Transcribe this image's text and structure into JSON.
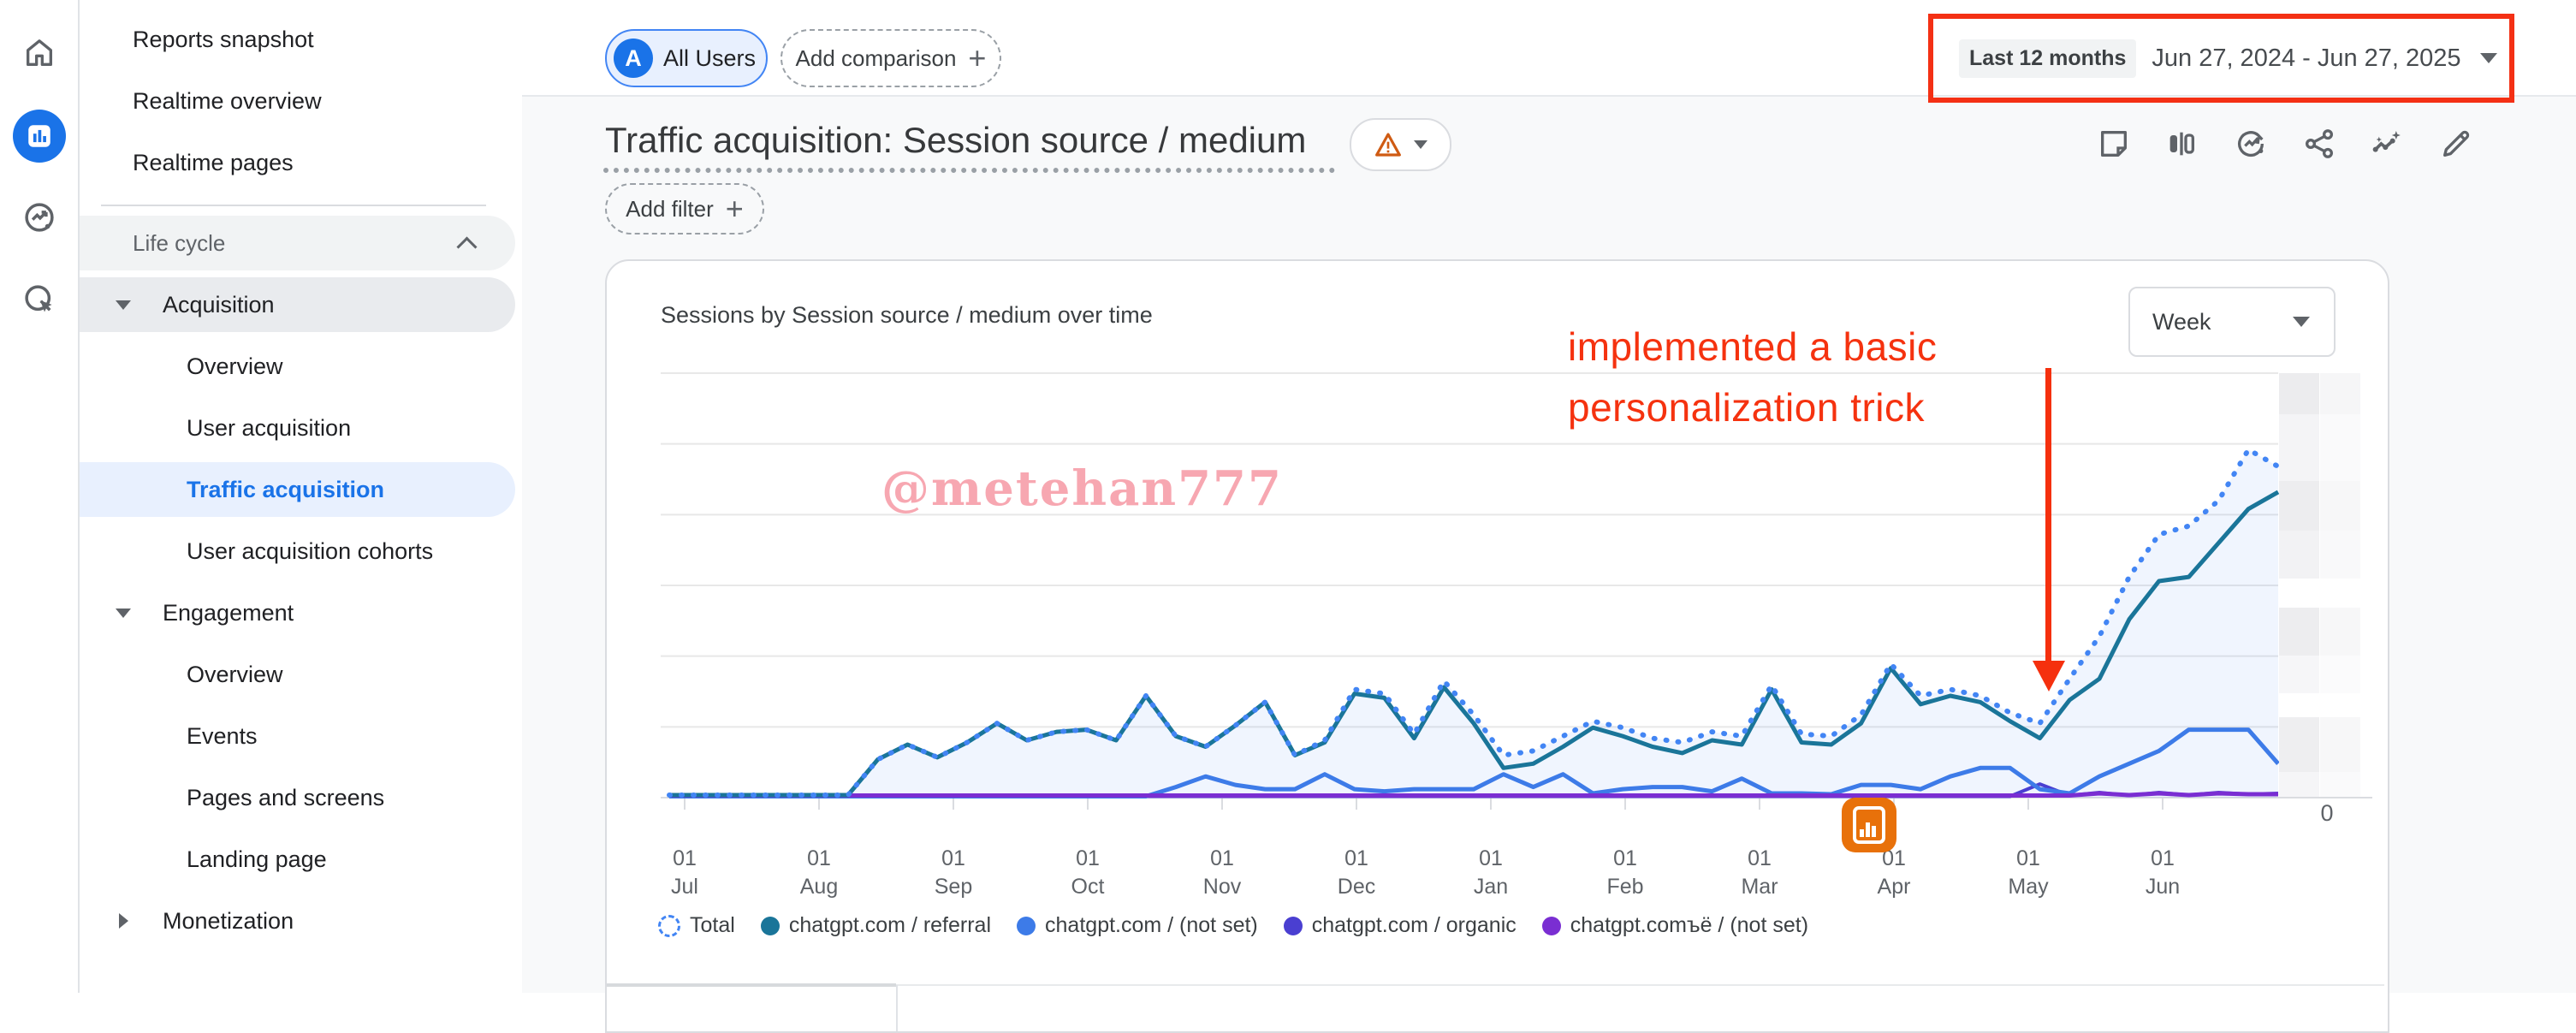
{
  "sidebar": {
    "rail_icons": [
      "home-icon",
      "reports-icon",
      "advertising-icon",
      "explore-icon"
    ],
    "items": [
      {
        "label": "Reports snapshot",
        "kind": "top"
      },
      {
        "label": "Realtime overview",
        "kind": "top"
      },
      {
        "label": "Realtime pages",
        "kind": "top"
      },
      {
        "label": "Life cycle",
        "kind": "section",
        "caret": "up"
      },
      {
        "label": "Acquisition",
        "kind": "category",
        "caret": "down",
        "expanded": true
      },
      {
        "label": "Overview",
        "kind": "leaf"
      },
      {
        "label": "User acquisition",
        "kind": "leaf"
      },
      {
        "label": "Traffic acquisition",
        "kind": "leaf",
        "selected": true
      },
      {
        "label": "User acquisition cohorts",
        "kind": "leaf"
      },
      {
        "label": "Engagement",
        "kind": "category",
        "caret": "down",
        "expanded": true
      },
      {
        "label": "Overview",
        "kind": "leaf"
      },
      {
        "label": "Events",
        "kind": "leaf"
      },
      {
        "label": "Pages and screens",
        "kind": "leaf"
      },
      {
        "label": "Landing page",
        "kind": "leaf"
      },
      {
        "label": "Monetization",
        "kind": "category",
        "caret": "right",
        "expanded": false
      }
    ]
  },
  "topbar": {
    "avatar_letter": "A",
    "all_users_label": "All Users",
    "add_comparison_label": "Add comparison",
    "date_preset": "Last 12 months",
    "date_range": "Jun 27, 2024 - Jun 27, 2025"
  },
  "report_header": {
    "title": "Traffic acquisition: Session source / medium",
    "add_filter_label": "Add filter",
    "toolbar_icons": [
      "note-icon",
      "compare-icon",
      "trends-icon",
      "share-icon",
      "insights-icon",
      "edit-icon"
    ]
  },
  "card": {
    "chart_title": "Sessions by Session source / medium over time",
    "granularity_selected": "Week",
    "right_axis_zero": "0",
    "mini_chart_segments": [
      {
        "y": 131,
        "h": 48,
        "shade": "#ececee"
      },
      {
        "y": 179,
        "h": 78,
        "shade": "#f4f4f6"
      },
      {
        "y": 257,
        "h": 58,
        "shade": "#ededef"
      },
      {
        "y": 315,
        "h": 56,
        "shade": "#f2f2f4"
      },
      {
        "y": 405,
        "h": 56,
        "shade": "#ededef"
      },
      {
        "y": 461,
        "h": 44,
        "shade": "#f6f6f8"
      },
      {
        "y": 533,
        "h": 64,
        "shade": "#eeeef0"
      },
      {
        "y": 597,
        "h": 30,
        "shade": "#f5f5f7"
      }
    ]
  },
  "annotations": {
    "red_line1": "implemented a basic",
    "red_line2": "personalization trick",
    "red_color": "#f5320f",
    "watermark": "@metehan777",
    "marker_icon": "analytics-badge-icon"
  },
  "legend": {
    "items": [
      {
        "label": "Total",
        "style": "dashed",
        "color": "#4285f4"
      },
      {
        "label": "chatgpt.com / referral",
        "style": "solid",
        "color": "#1a7599"
      },
      {
        "label": "chatgpt.com / (not set)",
        "style": "solid",
        "color": "#3d7be8"
      },
      {
        "label": "chatgpt.com / organic",
        "style": "solid",
        "color": "#4a3fd1"
      },
      {
        "label": "chatgpt.comъё / (not set)",
        "style": "solid",
        "color": "#7a2ed2"
      }
    ]
  },
  "chart_data": {
    "type": "line",
    "title": "Sessions by Session source / medium over time",
    "xlabel": "",
    "ylabel": "",
    "y_axis": "unlabeled (only 0 shown at right of companion bar panel)",
    "ylim": [
      0,
      100
    ],
    "note": "values are relative estimates (0-100 of plot height); weekly points Jun 27 2024 - Jun 27 2025",
    "x_tick_day": "01",
    "x_tick_months": [
      "Jul",
      "Aug",
      "Sep",
      "Oct",
      "Nov",
      "Dec",
      "Jan",
      "Feb",
      "Mar",
      "Apr",
      "May",
      "Jun"
    ],
    "grid": true,
    "legend_position": "bottom",
    "series": [
      {
        "name": "Total",
        "color": "#4285f4",
        "dash": true,
        "width": 6,
        "area": true,
        "values": [
          0.6,
          0.6,
          0.6,
          0.6,
          0.6,
          0.6,
          0.6,
          9,
          12.5,
          9.5,
          13,
          17.5,
          13.5,
          15.5,
          16,
          13.5,
          24,
          14.5,
          12,
          17,
          22.5,
          10,
          13.5,
          25.5,
          24.5,
          15,
          27.5,
          19.5,
          10,
          11,
          14.5,
          18,
          16.5,
          14,
          13,
          15.5,
          14.5,
          26.5,
          15,
          14.5,
          19.5,
          31.5,
          24,
          25.5,
          24,
          20,
          17.5,
          28,
          38,
          52,
          62,
          64,
          70,
          82,
          78
        ]
      },
      {
        "name": "chatgpt.com / referral",
        "color": "#1a7599",
        "dash": false,
        "width": 5,
        "values": [
          0.6,
          0.6,
          0.6,
          0.6,
          0.6,
          0.6,
          0.6,
          9,
          12.5,
          9.5,
          13,
          17.5,
          13.5,
          15.5,
          16,
          13.5,
          24,
          14.5,
          12,
          17,
          22.5,
          10,
          13,
          24.5,
          23.5,
          14,
          26,
          17.5,
          7,
          8,
          12,
          16.5,
          14.5,
          12,
          10.5,
          13.5,
          12.5,
          25.5,
          13,
          12.5,
          17.5,
          30.5,
          22,
          24,
          22.5,
          18,
          14,
          23,
          28,
          42,
          51,
          52,
          60,
          68,
          72
        ]
      },
      {
        "name": "chatgpt.com / (not set)",
        "color": "#3d7be8",
        "dash": false,
        "width": 5,
        "values": [
          0.3,
          0.3,
          0.3,
          0.3,
          0.3,
          0.3,
          0.3,
          0.3,
          0.3,
          0.3,
          0.3,
          0.3,
          0.3,
          0.3,
          0.3,
          0.3,
          0.3,
          2.5,
          5,
          3,
          2,
          2,
          5.5,
          2,
          1.5,
          2,
          2,
          2,
          5.5,
          2.5,
          5.5,
          1,
          2,
          2.5,
          2.5,
          1.5,
          4.5,
          1,
          1,
          0.8,
          3,
          3,
          2,
          5,
          7,
          7,
          2,
          1,
          5,
          8,
          11,
          16,
          16,
          16,
          8
        ]
      },
      {
        "name": "chatgpt.com / organic",
        "color": "#4a3fd1",
        "dash": false,
        "width": 4,
        "values": [
          0.3,
          0.3,
          0.3,
          0.3,
          0.3,
          0.3,
          0.3,
          0.3,
          0.3,
          0.3,
          0.3,
          0.3,
          0.3,
          0.3,
          0.3,
          0.3,
          0.3,
          0.3,
          0.3,
          0.3,
          0.3,
          0.3,
          0.3,
          0.3,
          0.3,
          0.3,
          0.3,
          0.3,
          0.3,
          0.3,
          0.3,
          0.3,
          0.3,
          0.3,
          0.3,
          0.3,
          0.3,
          0.3,
          0.3,
          0.3,
          0.3,
          0.3,
          0.3,
          0.3,
          0.3,
          0.3,
          3.2,
          0.5,
          1.2,
          0.5,
          1.2,
          0.6,
          1.2,
          0.8,
          1
        ]
      },
      {
        "name": "chatgpt.comъё / (not set)",
        "color": "#7a2ed2",
        "dash": false,
        "width": 5,
        "values": [
          0.5,
          0.5,
          0.5,
          0.5,
          0.5,
          0.5,
          0.5,
          0.5,
          0.5,
          0.5,
          0.5,
          0.5,
          0.5,
          0.5,
          0.5,
          0.5,
          0.5,
          0.5,
          0.5,
          0.5,
          0.5,
          0.5,
          0.5,
          0.5,
          0.5,
          0.5,
          0.5,
          0.5,
          0.5,
          0.5,
          0.5,
          0.5,
          0.5,
          0.5,
          0.5,
          0.5,
          0.5,
          0.5,
          0.5,
          0.5,
          0.5,
          0.5,
          0.5,
          0.5,
          0.5,
          0.5,
          0.5,
          0.5,
          1,
          0.6,
          1,
          0.6,
          1,
          0.8,
          0.8
        ]
      }
    ]
  }
}
